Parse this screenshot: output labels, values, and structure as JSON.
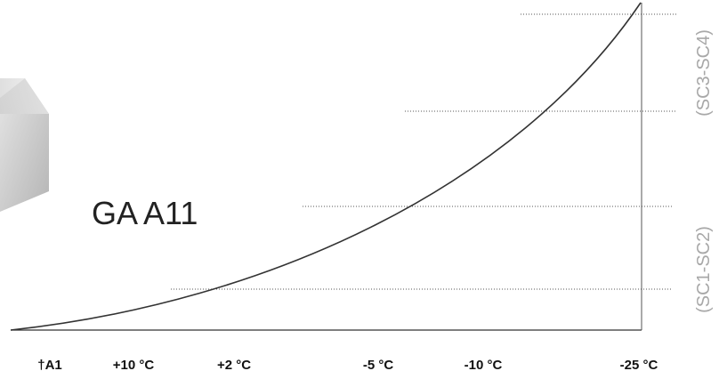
{
  "product": {
    "label": "GA A11"
  },
  "scale_labels": [
    "†A1",
    "+10 °C",
    "+2 °C",
    "-5 °C",
    "-10 °C",
    "-25 °C"
  ],
  "class_labels": {
    "upper": "(SC3-SC4)",
    "lower": "(SC1-SC2)"
  }
}
